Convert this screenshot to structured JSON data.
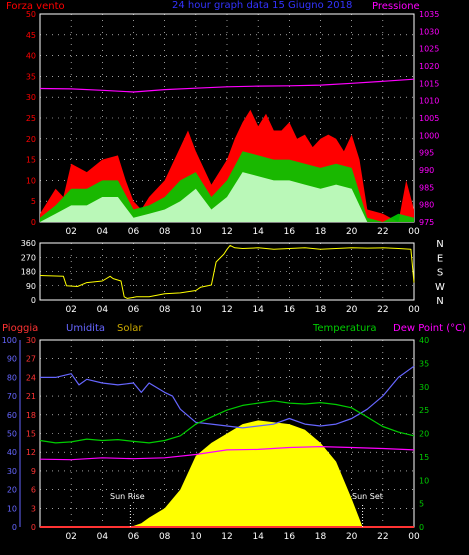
{
  "colors": {
    "background": "#000000",
    "frame": "#ffffff",
    "grid": "#ffffff",
    "wind": "#ff0000",
    "wind_avg": "#00cc00",
    "wind_min": "#ccffcc",
    "pressure": "#ff00ff",
    "direction": "#ffff00",
    "rain": "#ff3333",
    "humidity": "#6666ff",
    "solar": "#ffff00",
    "temperature": "#00cc00",
    "dewpoint": "#ff00ff",
    "sun_marker": "#ffffff"
  },
  "top": {
    "title": "24 hour graph data  15 Giugno 2018",
    "left_label": "Forza vento",
    "right_label": "Pressione"
  },
  "bottom": {
    "label_rain": "Pioggia",
    "label_humidity": "Umidita",
    "label_solar": "Solar",
    "label_temperature": "Temperatura",
    "label_dewpoint": "Dew Point (°C)",
    "sunrise_label": "Sun Rise",
    "sunset_label": "Sun Set"
  },
  "chart_data": [
    {
      "type": "area",
      "title": "24 hour graph data  15 Giugno 2018",
      "x_ticks": [
        "02",
        "04",
        "06",
        "08",
        "10",
        "12",
        "14",
        "16",
        "18",
        "20",
        "22",
        "00"
      ],
      "x_hours": [
        2,
        4,
        6,
        8,
        10,
        12,
        14,
        16,
        18,
        20,
        22,
        24
      ],
      "y_left_label": "Forza vento",
      "y_left_ticks": [
        0,
        5,
        10,
        15,
        20,
        25,
        30,
        35,
        40,
        45,
        50
      ],
      "y_left_range": [
        0,
        50
      ],
      "y_right_label": "Pressione",
      "y_right_ticks": [
        975,
        980,
        985,
        990,
        995,
        1000,
        1005,
        1010,
        1015,
        1020,
        1025,
        1030,
        1035
      ],
      "y_right_range": [
        975,
        1035
      ],
      "grid": true,
      "series": [
        {
          "name": "wind_gust",
          "axis": "left",
          "x": [
            0,
            1,
            1.5,
            2,
            3,
            4,
            5,
            5.5,
            6,
            6.5,
            7,
            8,
            9,
            9.5,
            10,
            11,
            12,
            12.5,
            13,
            13.5,
            14,
            14.5,
            15,
            15.5,
            16,
            16.5,
            17,
            17.5,
            18,
            18.5,
            19,
            19.5,
            20,
            20.5,
            21,
            22,
            23,
            23.5,
            24
          ],
          "y": [
            2,
            8,
            6,
            14,
            12,
            15,
            16,
            10,
            5,
            3,
            6,
            10,
            18,
            22,
            17,
            9,
            15,
            20,
            24,
            27,
            23,
            26,
            22,
            22,
            24,
            20,
            21,
            18,
            20,
            21,
            20,
            17,
            21,
            15,
            3,
            2,
            0,
            10,
            3
          ]
        },
        {
          "name": "wind_avg",
          "axis": "left",
          "x": [
            0,
            1,
            2,
            3,
            4,
            5,
            6,
            7,
            8,
            9,
            10,
            11,
            12,
            13,
            14,
            15,
            16,
            17,
            18,
            19,
            20,
            21,
            22,
            23,
            24
          ],
          "y": [
            1,
            4,
            8,
            8,
            10,
            10,
            3,
            4,
            6,
            10,
            12,
            6,
            10,
            17,
            16,
            15,
            15,
            14,
            13,
            14,
            13,
            1,
            0,
            2,
            1
          ]
        },
        {
          "name": "wind_min",
          "axis": "left",
          "x": [
            0,
            1,
            2,
            3,
            4,
            5,
            6,
            7,
            8,
            9,
            10,
            11,
            12,
            13,
            14,
            15,
            16,
            17,
            18,
            19,
            20,
            21,
            22,
            23,
            24
          ],
          "y": [
            0,
            2,
            4,
            4,
            6,
            6,
            1,
            2,
            3,
            5,
            8,
            3,
            6,
            12,
            11,
            10,
            10,
            9,
            8,
            9,
            8,
            0,
            0,
            0,
            0
          ]
        },
        {
          "name": "pressure",
          "axis": "right",
          "x": [
            0,
            2,
            4,
            6,
            8,
            10,
            12,
            14,
            16,
            18,
            20,
            22,
            24
          ],
          "y": [
            1013.5,
            1013.4,
            1013,
            1012.5,
            1013.2,
            1013.6,
            1014,
            1014.2,
            1014.3,
            1014.5,
            1015,
            1015.6,
            1016.2
          ]
        }
      ]
    },
    {
      "type": "line",
      "x_ticks": [
        "02",
        "04",
        "06",
        "08",
        "10",
        "12",
        "14",
        "16",
        "18",
        "20",
        "22",
        "00"
      ],
      "y_ticks": [
        0,
        90,
        180,
        270,
        360
      ],
      "y_range": [
        0,
        360
      ],
      "y_right_labels": [
        "N",
        "W",
        "S",
        "E",
        "N"
      ],
      "series": [
        {
          "name": "wind_direction",
          "x": [
            0,
            1.5,
            1.7,
            2.4,
            3,
            4,
            4.5,
            4.7,
            5.2,
            5.4,
            5.6,
            5.9,
            6.2,
            7,
            8,
            9,
            10,
            10.3,
            11,
            11.3,
            11.8,
            12,
            12.2,
            12.5,
            13,
            14,
            15,
            16,
            17,
            18,
            19,
            20,
            21,
            22,
            23,
            23.8,
            24
          ],
          "y": [
            155,
            150,
            90,
            85,
            110,
            120,
            150,
            135,
            120,
            20,
            10,
            15,
            20,
            20,
            40,
            45,
            60,
            80,
            95,
            240,
            290,
            320,
            345,
            330,
            325,
            330,
            320,
            325,
            330,
            320,
            325,
            330,
            328,
            330,
            325,
            320,
            110
          ]
        }
      ]
    },
    {
      "type": "line",
      "x_ticks": [
        "02",
        "04",
        "06",
        "08",
        "10",
        "12",
        "14",
        "16",
        "18",
        "20",
        "22",
        "00"
      ],
      "y_left1_label": "Umidita",
      "y_left1_ticks": [
        0,
        10,
        20,
        30,
        40,
        50,
        60,
        70,
        80,
        90,
        100
      ],
      "y_left1_range": [
        0,
        100
      ],
      "y_left2_label": "Pioggia",
      "y_left2_ticks": [
        0,
        3,
        6,
        9,
        12,
        15,
        18,
        21,
        24,
        27,
        30
      ],
      "y_left2_range": [
        0,
        30
      ],
      "y_right_label": "Dew Point (°C)",
      "y_right_ticks": [
        0,
        5,
        10,
        15,
        20,
        25,
        30,
        35,
        40
      ],
      "y_right_range": [
        0,
        40
      ],
      "sunrise_hour": 5.8,
      "sunset_hour": 20.7,
      "series": [
        {
          "name": "Umidita",
          "axis": "left1",
          "x": [
            0,
            1,
            2,
            2.5,
            3,
            4,
            5,
            6,
            6.5,
            7,
            8,
            8.5,
            9,
            10,
            11,
            12,
            13,
            14,
            15,
            16,
            17,
            18,
            19,
            20,
            21,
            22,
            23,
            24
          ],
          "y": [
            80,
            80,
            82,
            76,
            79,
            77,
            76,
            77,
            72,
            77,
            72,
            70,
            63,
            56,
            55,
            54,
            53,
            54,
            55,
            58,
            55,
            54,
            55,
            58,
            63,
            70,
            80,
            86
          ]
        },
        {
          "name": "Pioggia",
          "axis": "left2",
          "x": [
            0,
            24
          ],
          "y": [
            0,
            0
          ]
        },
        {
          "name": "Solar",
          "axis": "left1",
          "x": [
            5.8,
            6.5,
            7,
            8,
            9,
            10,
            11,
            12,
            13,
            14,
            15,
            16,
            17,
            18,
            19,
            20,
            20.7
          ],
          "y": [
            0,
            2,
            5,
            10,
            20,
            38,
            45,
            50,
            55,
            57,
            56,
            55,
            52,
            45,
            35,
            15,
            0
          ]
        },
        {
          "name": "Temperatura",
          "axis": "right",
          "x": [
            0,
            1,
            2,
            3,
            4,
            5,
            6,
            7,
            8,
            9,
            10,
            11,
            12,
            13,
            14,
            15,
            16,
            17,
            18,
            19,
            20,
            21,
            22,
            23,
            24
          ],
          "y": [
            18.5,
            18,
            18.2,
            18.8,
            18.5,
            18.7,
            18.3,
            18,
            18.5,
            19.5,
            22,
            23.5,
            25,
            26,
            26.5,
            27,
            26.5,
            26.3,
            26.6,
            26.2,
            25.5,
            23.5,
            21.5,
            20.3,
            19.5
          ]
        },
        {
          "name": "Dew Point",
          "axis": "right",
          "x": [
            0,
            2,
            4,
            6,
            8,
            10,
            12,
            14,
            16,
            18,
            20,
            22,
            24
          ],
          "y": [
            14.5,
            14.4,
            14.8,
            14.6,
            14.8,
            15.5,
            16.5,
            16.6,
            17,
            17.2,
            17,
            16.8,
            16.5
          ]
        }
      ]
    }
  ]
}
